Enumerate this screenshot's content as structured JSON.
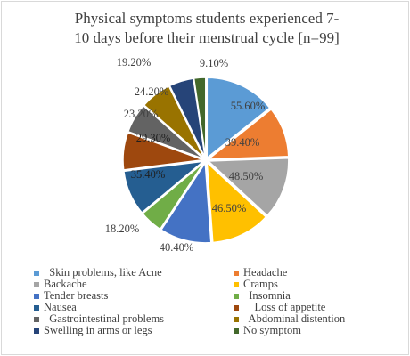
{
  "chart_data": {
    "type": "pie",
    "title": "Physical symptoms students experienced  7-10 days before their menstrual cycle [n=99]",
    "title_lines": [
      "Physical symptoms students experienced  7-",
      "10 days before their menstrual cycle [n=99]"
    ],
    "categories": [
      "Skin problems, like Acne",
      "Headache",
      "Backache",
      "Cramps",
      "Tender breasts",
      "Insomnia",
      "Nausea",
      "Loss of appetite",
      "Gastrointestinal problems",
      "Abdominal distention",
      "Swelling in arms or legs",
      "No symptom"
    ],
    "legend_labels": [
      "  Skin problems, like Acne",
      "Headache",
      "Backache",
      "Cramps",
      "Tender breasts",
      "  Insomnia",
      "Nausea",
      "    Loss of appetite",
      "  Gastrointestinal problems",
      "  Abdominal distention",
      "Swelling in arms or legs",
      "No symptom"
    ],
    "values": [
      55.6,
      39.4,
      48.5,
      46.5,
      40.4,
      18.2,
      35.4,
      29.3,
      23.2,
      24.2,
      19.2,
      9.1
    ],
    "labels": [
      "55.60%",
      "39.40%",
      "48.50%",
      "46.50%",
      "40.40%",
      "18.20%",
      "35.40%",
      "29.30%",
      "23.20%",
      "24.20%",
      "19.20%",
      "9.10%"
    ],
    "colors": [
      "#5b9bd5",
      "#ed7d31",
      "#a5a5a5",
      "#ffc000",
      "#4472c4",
      "#70ad47",
      "#255e91",
      "#9e480e",
      "#636363",
      "#997300",
      "#264478",
      "#43682b"
    ],
    "legend_position": "bottom"
  }
}
